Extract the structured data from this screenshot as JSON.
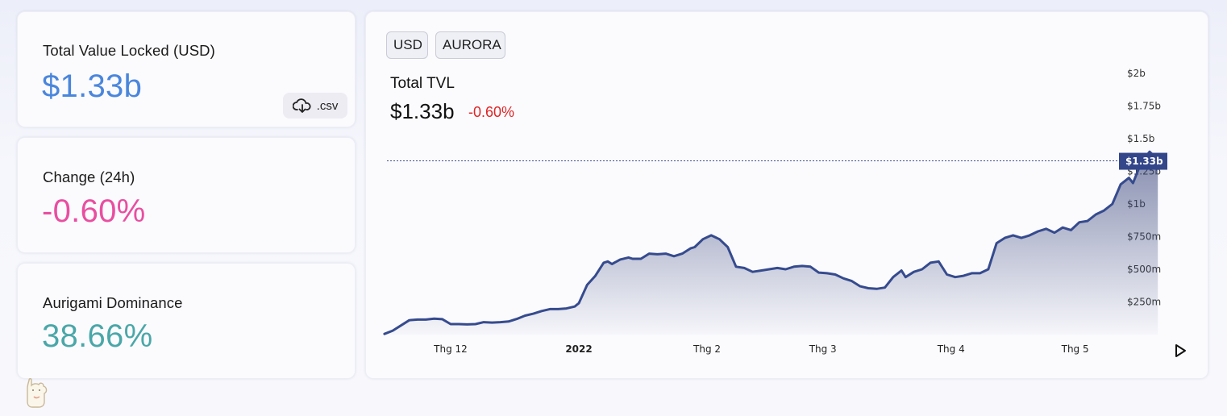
{
  "stats": {
    "tvl_label": "Total Value Locked (USD)",
    "tvl_value": "$1.33b",
    "tvl_color": "#4a86dc",
    "csv_label": ".csv",
    "change_label": "Change (24h)",
    "change_value": "-0.60%",
    "change_color": "#e94ea0",
    "dominance_label": "Aurigami Dominance",
    "dominance_value": "38.66%",
    "dominance_color": "#4aa7a8"
  },
  "chart_panel": {
    "chips": [
      "USD",
      "AURORA"
    ],
    "title": "Total TVL",
    "value": "$1.33b",
    "change": "-0.60%",
    "current_label": "$1.33b"
  },
  "chart_data": {
    "type": "area",
    "title": "Total TVL",
    "xlabel": "",
    "ylabel": "",
    "ylim": [
      0,
      2000000000
    ],
    "y_ticks": [
      "$250m",
      "$500m",
      "$750m",
      "$1b",
      "$1.25b",
      "$1.5b",
      "$1.75b",
      "$2b"
    ],
    "x_ticks": [
      {
        "label": "Thg 12",
        "date": "2021-12-01",
        "bold": false
      },
      {
        "label": "2022",
        "date": "2022-01-01",
        "bold": true
      },
      {
        "label": "Thg 2",
        "date": "2022-02-01",
        "bold": false
      },
      {
        "label": "Thg 3",
        "date": "2022-03-01",
        "bold": false
      },
      {
        "label": "Thg 4",
        "date": "2022-04-01",
        "bold": false
      },
      {
        "label": "Thg 5",
        "date": "2022-05-01",
        "bold": false
      }
    ],
    "current_value": 1330000000,
    "line_color": "#364b8e",
    "series": [
      {
        "values": [
          [
            "2021-11-15",
            5000000
          ],
          [
            "2021-11-17",
            30000000
          ],
          [
            "2021-11-19",
            70000000
          ],
          [
            "2021-11-21",
            110000000
          ],
          [
            "2021-11-23",
            115000000
          ],
          [
            "2021-11-25",
            115000000
          ],
          [
            "2021-11-27",
            122000000
          ],
          [
            "2021-11-29",
            118000000
          ],
          [
            "2021-12-01",
            80000000
          ],
          [
            "2021-12-03",
            80000000
          ],
          [
            "2021-12-05",
            78000000
          ],
          [
            "2021-12-07",
            80000000
          ],
          [
            "2021-12-09",
            95000000
          ],
          [
            "2021-12-11",
            92000000
          ],
          [
            "2021-12-13",
            95000000
          ],
          [
            "2021-12-15",
            100000000
          ],
          [
            "2021-12-17",
            120000000
          ],
          [
            "2021-12-19",
            145000000
          ],
          [
            "2021-12-21",
            160000000
          ],
          [
            "2021-12-23",
            180000000
          ],
          [
            "2021-12-25",
            195000000
          ],
          [
            "2021-12-27",
            195000000
          ],
          [
            "2021-12-29",
            200000000
          ],
          [
            "2021-12-31",
            215000000
          ],
          [
            "2022-01-01",
            240000000
          ],
          [
            "2022-01-03",
            380000000
          ],
          [
            "2022-01-05",
            450000000
          ],
          [
            "2022-01-07",
            550000000
          ],
          [
            "2022-01-08",
            560000000
          ],
          [
            "2022-01-09",
            540000000
          ],
          [
            "2022-01-11",
            575000000
          ],
          [
            "2022-01-13",
            590000000
          ],
          [
            "2022-01-14",
            580000000
          ],
          [
            "2022-01-16",
            580000000
          ],
          [
            "2022-01-18",
            620000000
          ],
          [
            "2022-01-20",
            615000000
          ],
          [
            "2022-01-22",
            620000000
          ],
          [
            "2022-01-24",
            600000000
          ],
          [
            "2022-01-26",
            620000000
          ],
          [
            "2022-01-28",
            660000000
          ],
          [
            "2022-01-29",
            670000000
          ],
          [
            "2022-01-31",
            730000000
          ],
          [
            "2022-02-02",
            760000000
          ],
          [
            "2022-02-04",
            730000000
          ],
          [
            "2022-02-06",
            670000000
          ],
          [
            "2022-02-08",
            520000000
          ],
          [
            "2022-02-10",
            510000000
          ],
          [
            "2022-02-12",
            480000000
          ],
          [
            "2022-02-14",
            490000000
          ],
          [
            "2022-02-16",
            500000000
          ],
          [
            "2022-02-18",
            510000000
          ],
          [
            "2022-02-20",
            500000000
          ],
          [
            "2022-02-22",
            520000000
          ],
          [
            "2022-02-24",
            525000000
          ],
          [
            "2022-02-26",
            520000000
          ],
          [
            "2022-02-28",
            475000000
          ],
          [
            "2022-03-02",
            470000000
          ],
          [
            "2022-03-04",
            460000000
          ],
          [
            "2022-03-06",
            430000000
          ],
          [
            "2022-03-08",
            410000000
          ],
          [
            "2022-03-10",
            370000000
          ],
          [
            "2022-03-12",
            355000000
          ],
          [
            "2022-03-14",
            350000000
          ],
          [
            "2022-03-16",
            360000000
          ],
          [
            "2022-03-18",
            440000000
          ],
          [
            "2022-03-20",
            490000000
          ],
          [
            "2022-03-21",
            440000000
          ],
          [
            "2022-03-23",
            480000000
          ],
          [
            "2022-03-25",
            500000000
          ],
          [
            "2022-03-27",
            550000000
          ],
          [
            "2022-03-29",
            560000000
          ],
          [
            "2022-03-31",
            460000000
          ],
          [
            "2022-04-02",
            440000000
          ],
          [
            "2022-04-04",
            450000000
          ],
          [
            "2022-04-06",
            470000000
          ],
          [
            "2022-04-08",
            470000000
          ],
          [
            "2022-04-10",
            500000000
          ],
          [
            "2022-04-12",
            700000000
          ],
          [
            "2022-04-14",
            740000000
          ],
          [
            "2022-04-16",
            760000000
          ],
          [
            "2022-04-18",
            740000000
          ],
          [
            "2022-04-20",
            760000000
          ],
          [
            "2022-04-22",
            790000000
          ],
          [
            "2022-04-24",
            810000000
          ],
          [
            "2022-04-26",
            780000000
          ],
          [
            "2022-04-28",
            820000000
          ],
          [
            "2022-04-30",
            800000000
          ],
          [
            "2022-05-02",
            860000000
          ],
          [
            "2022-05-04",
            870000000
          ],
          [
            "2022-05-06",
            920000000
          ],
          [
            "2022-05-08",
            950000000
          ],
          [
            "2022-05-10",
            1000000000
          ],
          [
            "2022-05-12",
            1150000000
          ],
          [
            "2022-05-14",
            1200000000
          ],
          [
            "2022-05-15",
            1160000000
          ],
          [
            "2022-05-17",
            1320000000
          ],
          [
            "2022-05-19",
            1400000000
          ],
          [
            "2022-05-20",
            1370000000
          ],
          [
            "2022-05-21",
            1330000000
          ]
        ]
      }
    ]
  }
}
